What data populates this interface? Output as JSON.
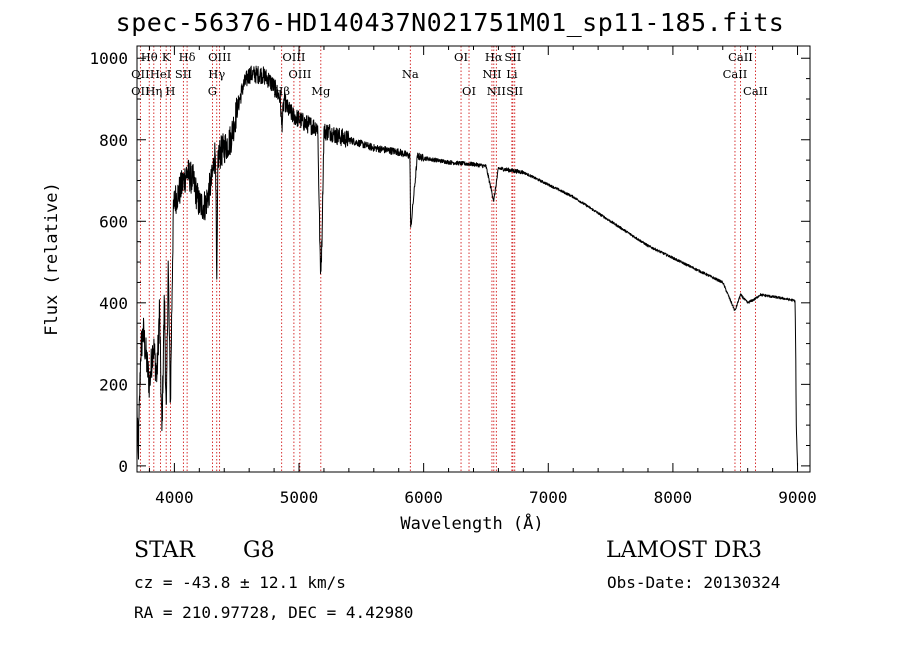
{
  "header": {
    "title": "spec-56376-HD140437N021751M01_sp11-185.fits"
  },
  "info": {
    "class": "STAR",
    "subclass": "G8",
    "survey": "LAMOST DR3",
    "cz": "cz = -43.8 ± 12.1 km/s",
    "obs_date": "Obs-Date: 20130324",
    "radec": "RA = 210.97728, DEC =   4.42980"
  },
  "chart_data": {
    "type": "line",
    "title": "spec-56376-HD140437N021751M01_sp11-185.fits",
    "xlabel": "Wavelength (Å)",
    "ylabel": "Flux (relative)",
    "xlim": [
      3700,
      9100
    ],
    "ylim": [
      -15,
      1030
    ],
    "xticks": [
      4000,
      5000,
      6000,
      7000,
      8000,
      9000
    ],
    "yticks": [
      0,
      200,
      400,
      600,
      800,
      1000
    ],
    "grid": false,
    "line_color": "#000000",
    "marker_color": "#cc0000",
    "spectrum_anchors": {
      "x": [
        3700,
        3710,
        3730,
        3750,
        3780,
        3800,
        3830,
        3860,
        3880,
        3900,
        3920,
        3935,
        3950,
        3968,
        3990,
        4000,
        4050,
        4100,
        4150,
        4200,
        4250,
        4300,
        4330,
        4340,
        4350,
        4400,
        4450,
        4500,
        4550,
        4600,
        4650,
        4700,
        4750,
        4800,
        4850,
        4861,
        4880,
        4900,
        4950,
        5000,
        5050,
        5100,
        5150,
        5172,
        5183,
        5200,
        5250,
        5300,
        5400,
        5500,
        5600,
        5700,
        5800,
        5890,
        5896,
        5950,
        6000,
        6100,
        6200,
        6300,
        6400,
        6500,
        6563,
        6600,
        6700,
        6800,
        6900,
        7000,
        7200,
        7400,
        7600,
        7800,
        8000,
        8200,
        8400,
        8498,
        8542,
        8600,
        8662,
        8700,
        8800,
        8900,
        8980,
        8985,
        8990,
        9000
      ],
      "flux": [
        150,
        20,
        280,
        330,
        250,
        200,
        300,
        220,
        380,
        80,
        420,
        100,
        500,
        150,
        600,
        650,
        680,
        720,
        700,
        640,
        640,
        700,
        780,
        420,
        760,
        780,
        800,
        870,
        930,
        960,
        960,
        960,
        950,
        930,
        900,
        830,
        900,
        880,
        860,
        850,
        840,
        835,
        830,
        470,
        540,
        820,
        820,
        810,
        800,
        790,
        780,
        775,
        770,
        760,
        580,
        760,
        755,
        750,
        745,
        742,
        740,
        735,
        650,
        730,
        725,
        720,
        705,
        690,
        660,
        620,
        580,
        540,
        510,
        480,
        450,
        380,
        420,
        400,
        410,
        420,
        415,
        410,
        405,
        300,
        100,
        0
      ]
    },
    "emission_lines": [
      {
        "name": "Hθ",
        "wavelength": 3798,
        "row": 1
      },
      {
        "name": "OII",
        "wavelength": 3727,
        "row": 2
      },
      {
        "name": "OII",
        "wavelength": 3727,
        "row": 3
      },
      {
        "name": "HeI",
        "wavelength": 3889,
        "row": 2
      },
      {
        "name": "Hη",
        "wavelength": 3835,
        "row": 3
      },
      {
        "name": "K",
        "wavelength": 3934,
        "row": 1
      },
      {
        "name": "H",
        "wavelength": 3968,
        "row": 3
      },
      {
        "name": "SII",
        "wavelength": 4072,
        "row": 2
      },
      {
        "name": "Hδ",
        "wavelength": 4102,
        "row": 1
      },
      {
        "name": "OIII",
        "wavelength": 4363,
        "row": 1
      },
      {
        "name": "Hγ",
        "wavelength": 4340,
        "row": 2
      },
      {
        "name": "G",
        "wavelength": 4305,
        "row": 3
      },
      {
        "name": "Hβ",
        "wavelength": 4861,
        "row": 3
      },
      {
        "name": "OIII",
        "wavelength": 4959,
        "row": 1
      },
      {
        "name": "OIII",
        "wavelength": 5007,
        "row": 2
      },
      {
        "name": "Mg",
        "wavelength": 5175,
        "row": 3
      },
      {
        "name": "Na",
        "wavelength": 5893,
        "row": 2
      },
      {
        "name": "OI",
        "wavelength": 6300,
        "row": 1
      },
      {
        "name": "OI",
        "wavelength": 6364,
        "row": 3
      },
      {
        "name": "Hα",
        "wavelength": 6563,
        "row": 1
      },
      {
        "name": "NII",
        "wavelength": 6548,
        "row": 2
      },
      {
        "name": "NII",
        "wavelength": 6583,
        "row": 3
      },
      {
        "name": "SII",
        "wavelength": 6716,
        "row": 1
      },
      {
        "name": "Li",
        "wavelength": 6708,
        "row": 2
      },
      {
        "name": "SII",
        "wavelength": 6731,
        "row": 3
      },
      {
        "name": "CaII",
        "wavelength": 8542,
        "row": 1
      },
      {
        "name": "CaII",
        "wavelength": 8498,
        "row": 2
      },
      {
        "name": "CaII",
        "wavelength": 8662,
        "row": 3
      }
    ],
    "marker_lines": [
      3727,
      3798,
      3835,
      3889,
      3934,
      3968,
      4072,
      4102,
      4305,
      4340,
      4363,
      4861,
      4959,
      5007,
      5175,
      5893,
      6300,
      6364,
      6548,
      6563,
      6583,
      6708,
      6716,
      6731,
      8498,
      8542,
      8662
    ]
  }
}
